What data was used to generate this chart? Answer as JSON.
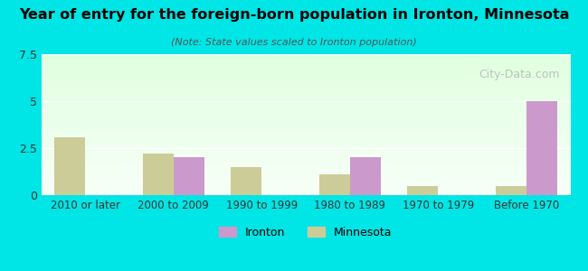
{
  "title": "Year of entry for the foreign-born population in Ironton, Minnesota",
  "subtitle": "(Note: State values scaled to Ironton population)",
  "categories": [
    "2010 or later",
    "2000 to 2009",
    "1990 to 1999",
    "1980 to 1989",
    "1970 to 1979",
    "Before 1970"
  ],
  "ironton_values": [
    0,
    2.0,
    0,
    2.0,
    0,
    5.0
  ],
  "minnesota_values": [
    3.1,
    2.2,
    1.5,
    1.1,
    0.5,
    0.5
  ],
  "ironton_color": "#cc99cc",
  "minnesota_color": "#cccc99",
  "ylim": [
    0,
    7.5
  ],
  "yticks": [
    0,
    2.5,
    5,
    7.5
  ],
  "background_top": "#00e5e5",
  "plot_bg_top": "#e8ffe8",
  "plot_bg_bottom": "#f5fff5",
  "bar_width": 0.35,
  "legend_labels": [
    "Ironton",
    "Minnesota"
  ],
  "watermark": "City-Data.com"
}
